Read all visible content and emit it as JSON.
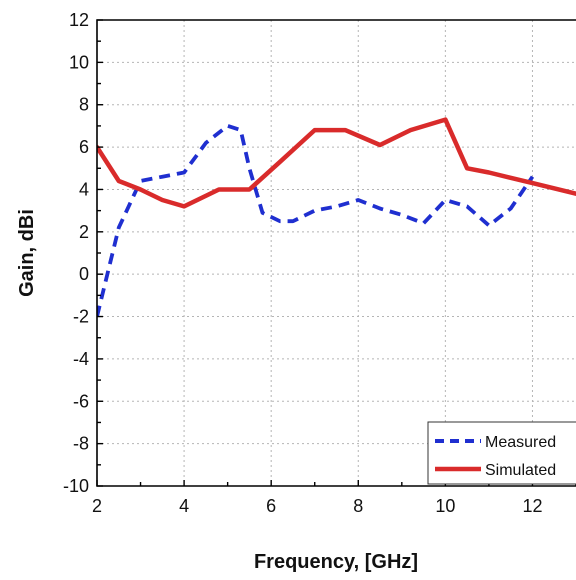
{
  "chart_data": {
    "type": "line",
    "xlabel": "Frequency, [GHz]",
    "ylabel": "Gain, dBi",
    "xlim": [
      2,
      13
    ],
    "ylim": [
      -10,
      12
    ],
    "xticks": [
      2,
      4,
      6,
      8,
      10,
      12
    ],
    "yticks": [
      -10,
      -8,
      -6,
      -4,
      -2,
      0,
      2,
      4,
      6,
      8,
      10,
      12
    ],
    "grid": true,
    "legend_position": "bottom-right",
    "series": [
      {
        "name": "Measured",
        "color": "#1f2fd0",
        "style": "dashed",
        "x": [
          2,
          2.5,
          3,
          3.5,
          4,
          4.5,
          5,
          5.3,
          5.5,
          5.8,
          6.2,
          6.5,
          7,
          7.5,
          8,
          8.5,
          9,
          9.5,
          10,
          10.5,
          11,
          11.5,
          12
        ],
        "y": [
          -2,
          2.2,
          4.4,
          4.6,
          4.8,
          6.2,
          7.0,
          6.8,
          5.0,
          2.9,
          2.5,
          2.5,
          3.0,
          3.2,
          3.5,
          3.1,
          2.8,
          2.4,
          3.5,
          3.2,
          2.3,
          3.1,
          4.6
        ]
      },
      {
        "name": "Simulated",
        "color": "#d92b2b",
        "style": "solid",
        "x": [
          2,
          2.5,
          3,
          3.5,
          4,
          4.8,
          5.5,
          6.2,
          7,
          7.7,
          8.5,
          9.2,
          10,
          10.5,
          11,
          12,
          13
        ],
        "y": [
          6.0,
          4.4,
          4.0,
          3.5,
          3.2,
          4.0,
          4.0,
          5.3,
          6.8,
          6.8,
          6.1,
          6.8,
          7.3,
          5.0,
          4.8,
          4.3,
          3.8
        ]
      }
    ]
  }
}
